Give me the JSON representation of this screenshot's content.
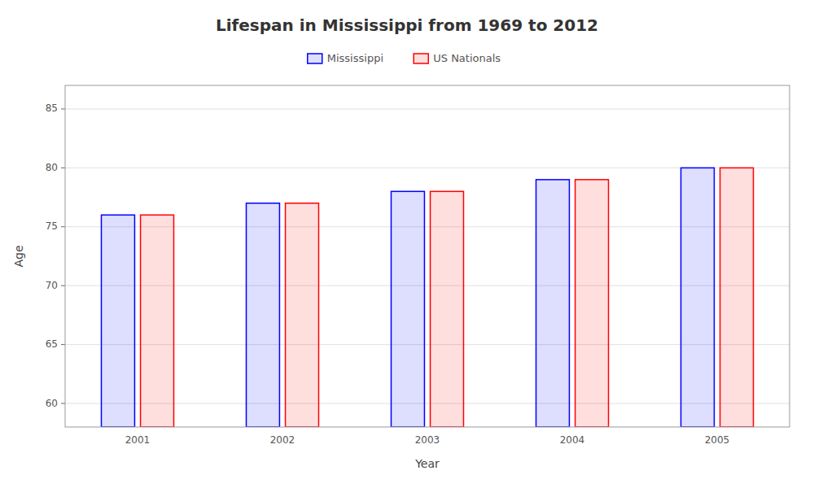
{
  "chart_data": {
    "type": "bar",
    "title": "Lifespan in Mississippi from 1969 to 2012",
    "x_label": "Year",
    "y_label": "Age",
    "categories": [
      "2001",
      "2002",
      "2003",
      "2004",
      "2005"
    ],
    "series": [
      {
        "name": "Mississippi",
        "color": "#0000ff",
        "values": [
          76,
          77,
          78,
          79,
          80
        ]
      },
      {
        "name": "US Nationals",
        "color": "#ff0000",
        "values": [
          76,
          77,
          78,
          79,
          80
        ]
      }
    ],
    "ylim": [
      58,
      87
    ],
    "yticks": [
      60,
      65,
      70,
      75,
      80,
      85
    ],
    "grid": true,
    "legend": "top"
  }
}
